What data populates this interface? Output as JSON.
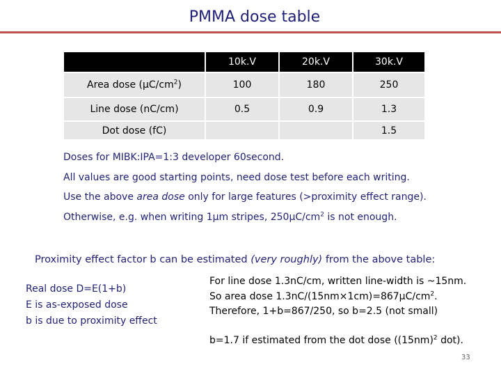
{
  "title": "PMMA dose table",
  "table": {
    "header": [
      "",
      "10k.V",
      "20k.V",
      "30k.V"
    ],
    "rows": [
      {
        "label_pre": "Area dose (μC/cm",
        "label_sup": "2",
        "label_post": ")",
        "values": [
          "100",
          "180",
          "250"
        ]
      },
      {
        "label_pre": "Line dose (nC/cm)",
        "label_sup": "",
        "label_post": "",
        "values": [
          "0.5",
          "0.9",
          "1.3"
        ]
      },
      {
        "label_pre": "Dot dose (fC)",
        "label_sup": "",
        "label_post": "",
        "values": [
          "",
          "",
          "1.5"
        ]
      }
    ]
  },
  "notes": {
    "line1": "Doses for MIBK:IPA=1:3 developer 60second.",
    "line2": "All values are good starting points, need dose test before each writing.",
    "line3_pre": "Use the above ",
    "line3_em": "area dose",
    "line3_post": " only for large features (>proximity effect range).",
    "line4_pre": "Otherwise, e.g. when writing 1μm stripes, 250μC/cm",
    "line4_sup": "2",
    "line4_post": " is not enough."
  },
  "proximity": {
    "heading_pre": "Proximity effect factor b can be estimated ",
    "heading_em": "(very roughly)",
    "heading_post": " from the above table:",
    "real_dose": [
      "Real dose D=E(1+b)",
      "E is as-exposed dose",
      "b is due to proximity effect"
    ],
    "explain1": "For line dose 1.3nC/cm, written line-width is ~15nm.",
    "explain2_pre": "So area dose 1.3nC/(15nm×1cm)=867μC/cm",
    "explain2_sup": "2",
    "explain2_post": ".",
    "explain3": "Therefore, 1+b=867/250, so b=2.5 (not small)",
    "dot_pre": "b=1.7 if estimated from the dot dose ((15nm)",
    "dot_sup": "2",
    "dot_post": " dot)."
  },
  "page_number": "33",
  "colors": {
    "title_text": "#1f1f7a",
    "title_rule": "#c0504d",
    "table_header_bg": "#000000",
    "table_cell_bg": "#e6e6e6",
    "notes_text": "#1f1f7a"
  }
}
